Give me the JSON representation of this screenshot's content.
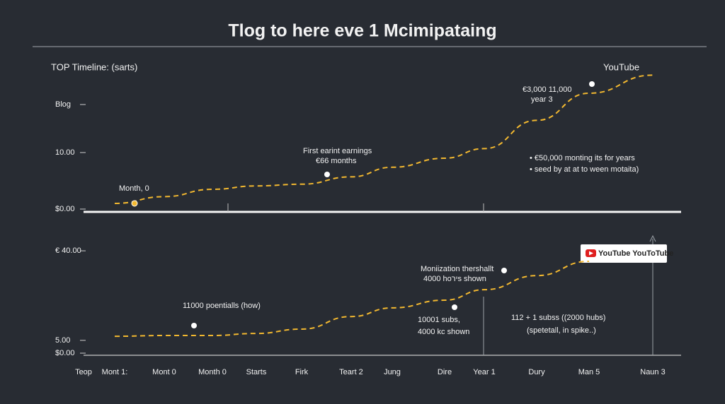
{
  "title": "Tlog to here eve 1 Mcimipataing",
  "chart_data": [
    {
      "type": "line",
      "subtitle": "TOP Timeline: (sarts)",
      "brand": "YouTube",
      "ylim": [
        0,
        26
      ],
      "yticks": [
        {
          "value": 0,
          "label": "$0.00"
        },
        {
          "value": 10,
          "label": "10.00"
        },
        {
          "value": 18.5,
          "label": "Blog"
        }
      ],
      "series": [
        {
          "color": "#f2b830",
          "values": [
            null,
            1.0,
            2.2,
            3.5,
            4.1,
            4.4,
            5.7,
            7.4,
            9.0,
            10.7,
            15.7,
            20.5,
            23.7
          ]
        }
      ],
      "annotations": [
        "Month, 0",
        "First earint earnings",
        "€66 months",
        "€3,000 11,000",
        "year 3",
        "• €50,000 monting its for years",
        "• seed by at at to ween motaita)"
      ]
    },
    {
      "type": "line",
      "brand": "YouTube YouToTube",
      "categories": [
        "Teop",
        "Mont 1:",
        "Mont 0",
        "Month 0",
        "Starts",
        "Firk",
        "Teart 2",
        "Jung",
        "Dire",
        "Year 1",
        "Dury",
        "Man 5",
        "Naun 3"
      ],
      "ylim": [
        0,
        45
      ],
      "yticks": [
        {
          "value": 0,
          "label": "$0.00"
        },
        {
          "value": 5,
          "label": "5.00"
        },
        {
          "value": 40,
          "label": "€ 40.00"
        }
      ],
      "series": [
        {
          "color": "#f2b830",
          "values": [
            null,
            6.6,
            6.9,
            6.9,
            7.7,
            9.4,
            14.3,
            17.7,
            20.7,
            24.8,
            30.3,
            35.9,
            null
          ]
        }
      ],
      "annotations": [
        "11000 poentialls (how)",
        "Moniization thershallt",
        "4000 hoירs shown",
        "10001 subs,",
        "4000 kc shown",
        "112 + 1 subss ((2000 hubs)",
        "(spetetall, in spike..)"
      ]
    }
  ]
}
